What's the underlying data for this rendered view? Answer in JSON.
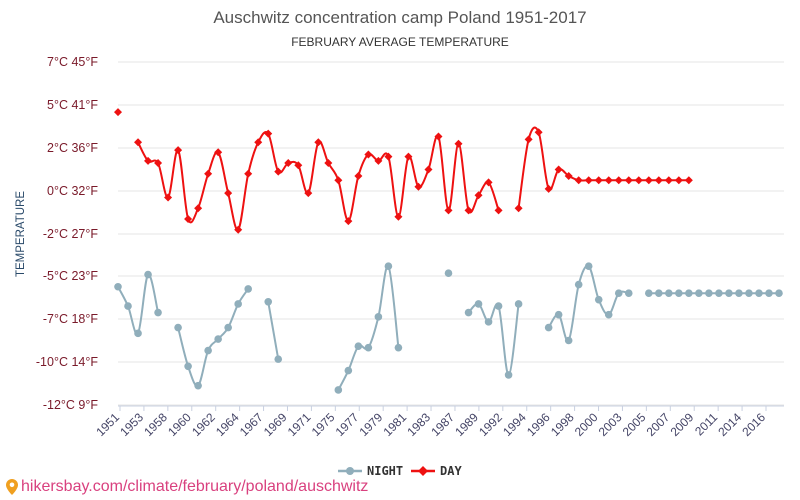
{
  "chart_data": {
    "type": "line",
    "title": "Auschwitz concentration camp Poland 1951-2017",
    "subtitle": "FEBRUARY AVERAGE TEMPERATURE",
    "ylabel": "TEMPERATURE",
    "xlabel": "",
    "y_unit": "°C",
    "ylim": [
      -12,
      7
    ],
    "yticks": [
      {
        "c": 7,
        "label": "7°C 45°F"
      },
      {
        "c": 5,
        "label": "5°C 41°F"
      },
      {
        "c": 2,
        "label": "2°C 36°F"
      },
      {
        "c": 0,
        "label": "0°C 32°F"
      },
      {
        "c": -2,
        "label": "-2°C 27°F"
      },
      {
        "c": -5,
        "label": "-5°C 23°F"
      },
      {
        "c": -7,
        "label": "-7°C 18°F"
      },
      {
        "c": -10,
        "label": "-10°C 14°F"
      },
      {
        "c": -12,
        "label": "-12°C 9°F"
      }
    ],
    "xlim": [
      1951,
      2017
    ],
    "xtick_labels": [
      "1951",
      "1953",
      "1958",
      "1960",
      "1962",
      "1964",
      "1967",
      "1969",
      "1971",
      "1975",
      "1977",
      "1979",
      "1981",
      "1983",
      "1987",
      "1989",
      "1992",
      "1994",
      "1996",
      "1998",
      "2000",
      "2003",
      "2005",
      "2007",
      "2009",
      "2011",
      "2014",
      "2016"
    ],
    "grid": true,
    "legend_position": "bottom-center",
    "series": [
      {
        "name": "NIGHT",
        "color": "#90aebb",
        "marker": "circle",
        "x": [
          1951,
          1952,
          1953,
          1954,
          1955,
          1957,
          1958,
          1959,
          1960,
          1961,
          1962,
          1963,
          1964,
          1966,
          1967,
          1973,
          1974,
          1975,
          1976,
          1977,
          1978,
          1979,
          1984,
          1986,
          1987,
          1988,
          1989,
          1990,
          1991,
          1994,
          1995,
          1996,
          1997,
          1998,
          1999,
          2000,
          2001,
          2002,
          2004,
          2005,
          2006,
          2007,
          2008,
          2009,
          2010,
          2011,
          2012,
          2013,
          2014,
          2015,
          2016,
          2017
        ],
        "values": [
          -5.5,
          -6.4,
          -8.0,
          -4.9,
          -6.7,
          -7.6,
          -10.2,
          -11.1,
          -9.2,
          -8.4,
          -7.6,
          -6.3,
          -5.6,
          -6.2,
          -9.8,
          -11.3,
          -10.4,
          -8.9,
          -9.0,
          -6.9,
          -4.3,
          -9.0,
          -4.8,
          -6.7,
          -6.3,
          -7.2,
          -6.4,
          -10.6,
          -6.3,
          -7.6,
          -6.8,
          -8.5,
          -5.4,
          -4.3,
          -6.1,
          -6.8,
          -5.8,
          -5.8,
          -5.8,
          -5.8,
          -5.8,
          -5.8,
          -5.8,
          -5.8,
          -5.8,
          -5.8,
          -5.8,
          -5.8,
          -5.8,
          -5.8,
          -5.8,
          -5.8
        ]
      },
      {
        "name": "DAY",
        "color": "#ee1111",
        "marker": "diamond",
        "x": [
          1951,
          1953,
          1954,
          1955,
          1956,
          1957,
          1958,
          1959,
          1960,
          1961,
          1962,
          1963,
          1964,
          1965,
          1966,
          1967,
          1968,
          1969,
          1970,
          1971,
          1972,
          1973,
          1974,
          1975,
          1976,
          1977,
          1978,
          1979,
          1980,
          1981,
          1982,
          1983,
          1984,
          1985,
          1986,
          1987,
          1988,
          1989,
          1991,
          1992,
          1993,
          1994,
          1995,
          1996,
          1997,
          1998,
          1999,
          2000,
          2001,
          2002,
          2003,
          2004,
          2005,
          2006,
          2007,
          2008
        ],
        "values": [
          4.5,
          2.4,
          1.4,
          1.3,
          -0.3,
          1.9,
          -1.3,
          -0.8,
          0.8,
          1.8,
          -0.1,
          -1.8,
          0.8,
          2.4,
          3.0,
          0.9,
          1.3,
          1.2,
          -0.1,
          2.4,
          1.3,
          0.5,
          -1.4,
          0.7,
          1.7,
          1.4,
          1.6,
          -1.2,
          1.6,
          0.2,
          1.0,
          2.8,
          -0.9,
          2.3,
          -0.9,
          -0.2,
          0.4,
          -0.9,
          -0.8,
          2.6,
          3.1,
          0.1,
          1.0,
          0.7,
          0.5,
          0.5,
          0.5,
          0.5,
          0.5,
          0.5,
          0.5,
          0.5,
          0.5,
          0.5,
          0.5,
          0.5
        ]
      }
    ]
  },
  "watermark": "hikersbay.com/climate/february/poland/auschwitz",
  "icons": {
    "watermark_icon": "location-pin-icon"
  }
}
